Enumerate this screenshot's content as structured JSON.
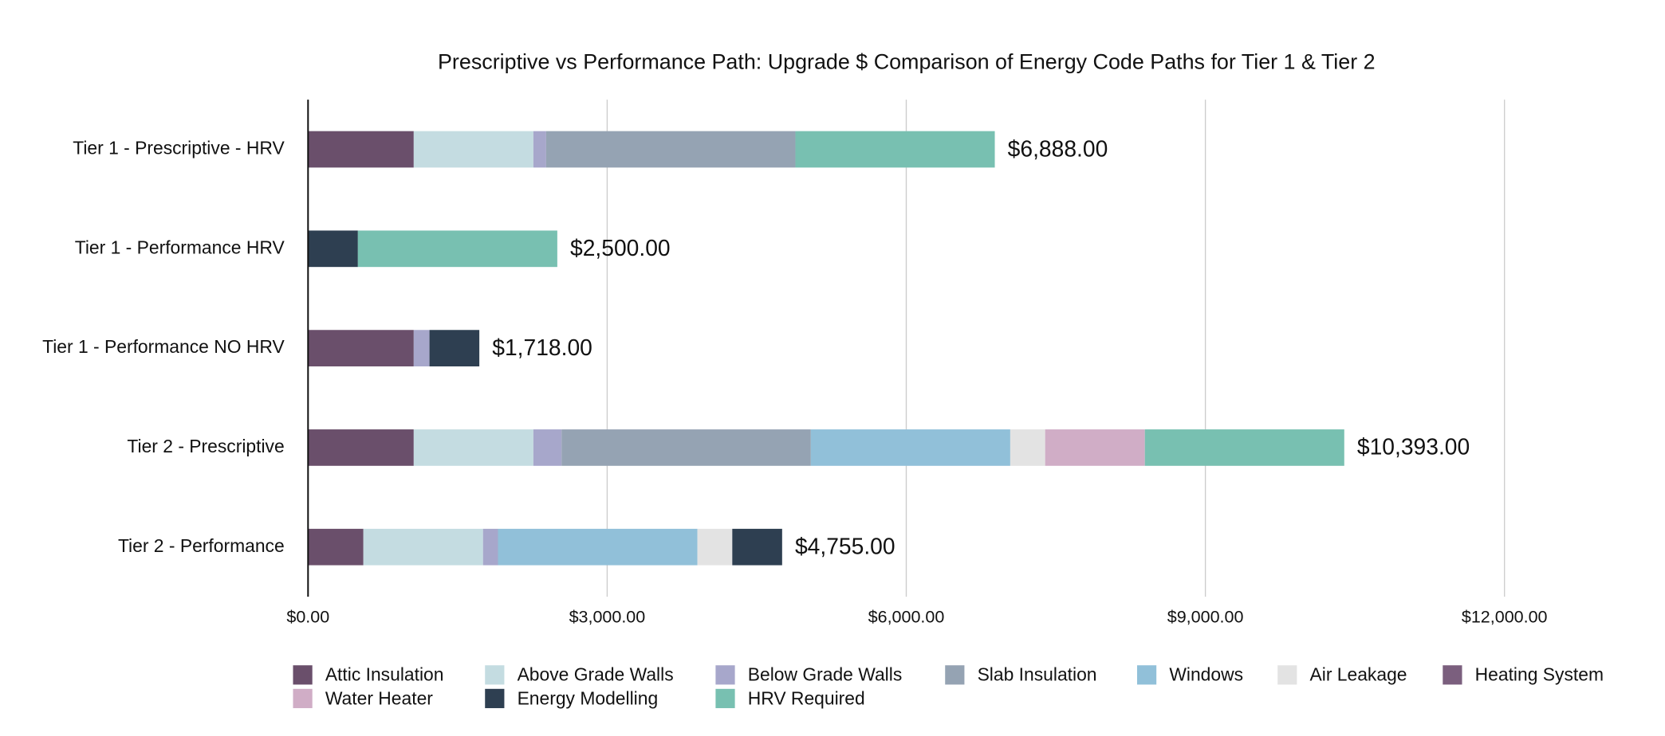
{
  "chart_data": {
    "type": "stacked-barh",
    "title": "Prescriptive vs Performance Path: Upgrade $ Comparison of Energy Code Paths for Tier 1 & Tier 2",
    "categories": [
      "Tier 1 - Prescriptive - HRV",
      "Tier 1 - Performance HRV",
      "Tier 1 - Performance NO HRV",
      "Tier 2 - Prescriptive",
      "Tier 2 - Performance"
    ],
    "series": [
      {
        "name": "Attic Insulation",
        "color": "#6a4f6b",
        "values": [
          1060,
          0,
          1060,
          1060,
          555
        ]
      },
      {
        "name": "Above Grade Walls",
        "color": "#c4dce1",
        "values": [
          1200,
          0,
          0,
          1200,
          1200
        ]
      },
      {
        "name": "Below Grade Walls",
        "color": "#a7a7cb",
        "values": [
          128,
          0,
          158,
          283,
          150
        ]
      },
      {
        "name": "Slab Insulation",
        "color": "#95a3b3",
        "values": [
          2500,
          0,
          0,
          2500,
          0
        ]
      },
      {
        "name": "Windows",
        "color": "#91c0d9",
        "values": [
          0,
          0,
          0,
          2000,
          2000
        ]
      },
      {
        "name": "Air Leakage",
        "color": "#e3e3e3",
        "values": [
          0,
          0,
          0,
          350,
          350
        ]
      },
      {
        "name": "Heating System",
        "color": "#7b5f7e",
        "values": [
          0,
          0,
          0,
          0,
          0
        ]
      },
      {
        "name": "Water Heater",
        "color": "#d0adc6",
        "values": [
          0,
          0,
          0,
          1000,
          0
        ]
      },
      {
        "name": "Energy Modelling",
        "color": "#2e3f51",
        "values": [
          0,
          500,
          500,
          0,
          500
        ]
      },
      {
        "name": "HRV Required",
        "color": "#78c0b1",
        "values": [
          2000,
          2000,
          0,
          2000,
          0
        ]
      }
    ],
    "totals": [
      6888,
      2500,
      1718,
      10393,
      4755
    ],
    "total_labels": [
      "$6,888.00",
      "$2,500.00",
      "$1,718.00",
      "$10,393.00",
      "$4,755.00"
    ],
    "xlim": [
      0,
      13500
    ],
    "xticks": [
      {
        "value": 0,
        "label": "$0.00"
      },
      {
        "value": 3000,
        "label": "$3,000.00"
      },
      {
        "value": 6000,
        "label": "$6,000.00"
      },
      {
        "value": 9000,
        "label": "$9,000.00"
      },
      {
        "value": 12000,
        "label": "$12,000.00"
      }
    ],
    "grid": true,
    "legend": "bottom"
  }
}
